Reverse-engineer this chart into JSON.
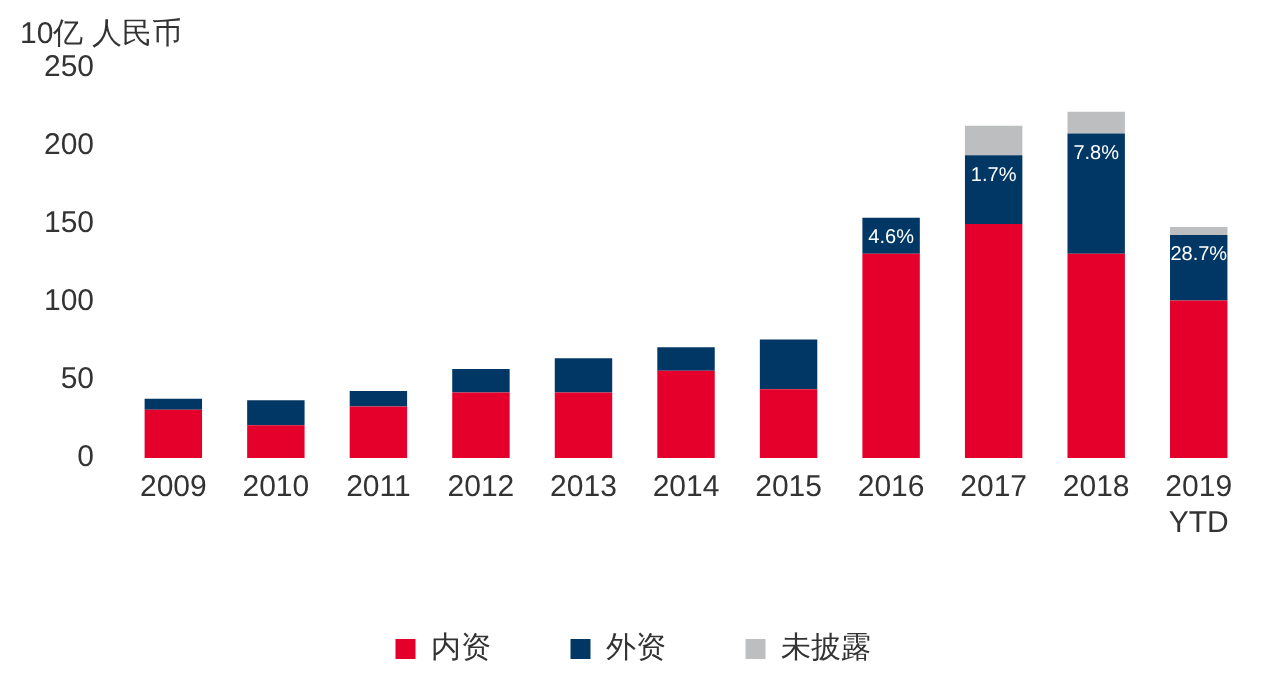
{
  "chart_data": {
    "type": "bar",
    "stacked": true,
    "ylabel": "10亿 人民币",
    "categories": [
      "2009",
      "2010",
      "2011",
      "2012",
      "2013",
      "2014",
      "2015",
      "2016",
      "2017",
      "2018",
      "2019\nYTD"
    ],
    "series": [
      {
        "name": "内资",
        "color": "#e4002b",
        "values": [
          31,
          21,
          33,
          42,
          42,
          56,
          44,
          131,
          150,
          131,
          101
        ]
      },
      {
        "name": "外资",
        "color": "#003764",
        "values": [
          7,
          16,
          10,
          15,
          22,
          15,
          32,
          23,
          44,
          77,
          42
        ]
      },
      {
        "name": "未披露",
        "color": "#bcbec0",
        "values": [
          0,
          0,
          0,
          0,
          0,
          0,
          0,
          0,
          19,
          14,
          5
        ]
      }
    ],
    "annotations": [
      {
        "text": "4.6%",
        "x": "2016",
        "y": 154
      },
      {
        "text": "1.7%",
        "x": "2017",
        "y": 194
      },
      {
        "text": "7.8%",
        "x": "2018",
        "y": 208
      },
      {
        "text": "28.7%",
        "x": "2019\nYTD",
        "y": 143
      }
    ],
    "ylim": [
      0,
      250
    ],
    "yticks": [
      0,
      50,
      100,
      150,
      200,
      250
    ],
    "grid": false,
    "legend": "bottom"
  }
}
